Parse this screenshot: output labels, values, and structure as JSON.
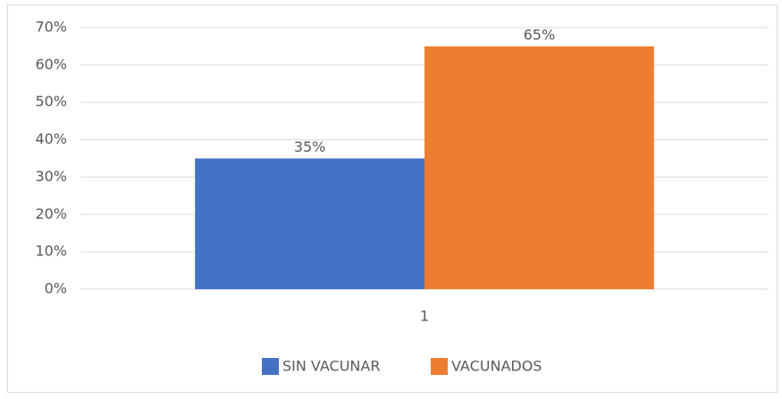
{
  "chart_data": {
    "type": "bar",
    "categories": [
      "1"
    ],
    "series": [
      {
        "name": "SIN VACUNAR",
        "color": "#4472c4",
        "values": [
          35
        ],
        "value_labels": [
          "35%"
        ]
      },
      {
        "name": "VACUNADOS",
        "color": "#ed7d31",
        "values": [
          65
        ],
        "value_labels": [
          "65%"
        ]
      }
    ],
    "ylim": [
      0,
      70
    ],
    "yticks": [
      {
        "value": 0,
        "label": "0%"
      },
      {
        "value": 10,
        "label": "10%"
      },
      {
        "value": 20,
        "label": "20%"
      },
      {
        "value": 30,
        "label": "30%"
      },
      {
        "value": 40,
        "label": "40%"
      },
      {
        "value": 50,
        "label": "50%"
      },
      {
        "value": 60,
        "label": "60%"
      },
      {
        "value": 70,
        "label": "70%"
      }
    ],
    "grid": true,
    "legend": "bottom"
  }
}
